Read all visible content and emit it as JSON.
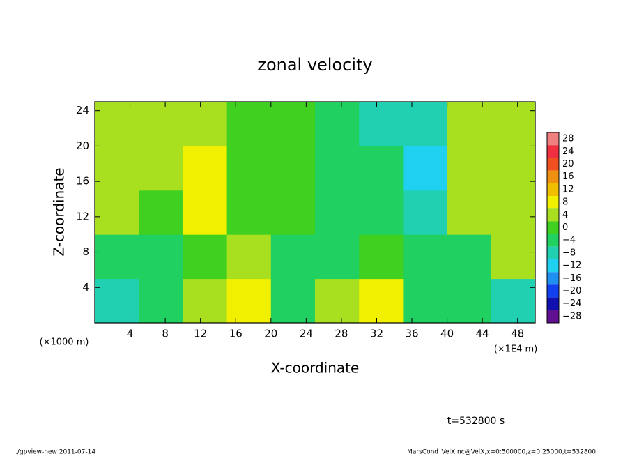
{
  "chart_data": {
    "type": "heatmap",
    "title": "zonal velocity",
    "x_label": "X-coordinate",
    "y_label": "Z-coordinate",
    "x_unit": "(×1E4 m)",
    "y_unit": "(×1000 m)",
    "x": [
      2.5,
      7.5,
      12.5,
      17.5,
      22.5,
      27.5,
      32.5,
      37.5,
      42.5,
      47.5
    ],
    "y": [
      2.5,
      7.5,
      12.5,
      17.5,
      22.5
    ],
    "z": [
      [
        -6,
        -4,
        4,
        8,
        -2,
        6,
        8,
        -4,
        -4,
        -8
      ],
      [
        -4,
        -2,
        2,
        4,
        -4,
        -2,
        2,
        -2,
        -2,
        6
      ],
      [
        4,
        2,
        10,
        2,
        0,
        -2,
        -4,
        -6,
        4,
        4
      ],
      [
        6,
        6,
        8,
        2,
        0,
        -2,
        -4,
        -10,
        6,
        6
      ],
      [
        6,
        6,
        4,
        2,
        0,
        -4,
        -6,
        -6,
        4,
        6
      ]
    ],
    "xlim": [
      0,
      50
    ],
    "ylim": [
      0,
      25
    ],
    "xticks": [
      4,
      8,
      12,
      16,
      20,
      24,
      28,
      32,
      36,
      40,
      44,
      48
    ],
    "yticks": [
      4,
      8,
      12,
      16,
      20,
      24
    ],
    "levels": [
      28,
      24,
      20,
      16,
      12,
      8,
      4,
      0,
      -4,
      -8,
      -12,
      -16,
      -20,
      -24,
      -28
    ],
    "level_labels": [
      "28",
      "24",
      "20",
      "16",
      "12",
      "8",
      "4",
      "0",
      "−4",
      "−8",
      "−12",
      "−16",
      "−20",
      "−24",
      "−28"
    ],
    "level_colors": [
      "#f08080",
      "#f03040",
      "#f05020",
      "#f09010",
      "#f0c000",
      "#f0f000",
      "#a8e020",
      "#40d020",
      "#20d060",
      "#20d0b0",
      "#20d0f0",
      "#2090f0",
      "#1040f0",
      "#1010b0",
      "#601090"
    ],
    "annotation": "t=532800 s",
    "footer_left": "./gpview-new  2011-07-14",
    "footer_right": "MarsCond_VelX.nc@VelX,x=0:500000,z=0:25000,t=532800"
  }
}
